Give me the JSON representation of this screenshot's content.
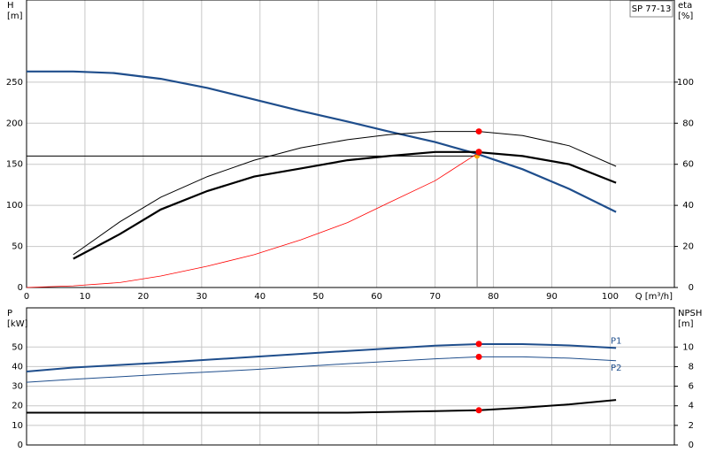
{
  "chart_data": [
    {
      "type": "line",
      "title": "SP 77-13",
      "ylabel": "H",
      "yunit": "[m]",
      "y2label": "eta",
      "y2unit": "[%]",
      "xlabel": "Q [m³/h]",
      "xlim": [
        0,
        111
      ],
      "xticks": [
        0,
        10,
        20,
        30,
        40,
        50,
        60,
        70,
        80,
        90,
        100
      ],
      "ylim": [
        0,
        350
      ],
      "yticks": [
        0,
        50,
        100,
        150,
        200,
        250
      ],
      "y2lim": [
        0,
        140
      ],
      "y2ticks": [
        0,
        20,
        40,
        60,
        80,
        100
      ],
      "grid": true,
      "series": [
        {
          "color": "#1f4e8c",
          "width": 2.2,
          "x": [
            0,
            8,
            15,
            23,
            31,
            39,
            47,
            55,
            62,
            70,
            77,
            85,
            93,
            101
          ],
          "values": [
            263,
            263,
            261,
            254,
            243,
            229,
            215,
            202,
            190,
            177,
            163,
            144,
            120,
            92
          ]
        },
        {
          "color": "#000000",
          "width": 1,
          "axis": "y2",
          "x": [
            8,
            16,
            23,
            31,
            39,
            47,
            55,
            62,
            70,
            77.5,
            85,
            93,
            101
          ],
          "values": [
            16,
            32,
            44,
            54,
            62,
            68,
            72,
            74.4,
            76,
            76,
            74,
            69,
            59
          ]
        },
        {
          "color": "#000000",
          "width": 2.2,
          "axis": "y2",
          "x": [
            8,
            16,
            23,
            31,
            39,
            47,
            55,
            62,
            70,
            77,
            85,
            93,
            101
          ],
          "values": [
            14,
            26,
            38,
            47,
            54,
            58,
            62,
            64,
            66,
            66,
            64,
            60,
            51
          ]
        },
        {
          "color": "#ff0000",
          "width": 0.8,
          "x": [
            0,
            8,
            16,
            23,
            31,
            39,
            47,
            55,
            62,
            70,
            77
          ],
          "values": [
            0,
            2,
            6,
            14,
            26,
            40,
            58,
            79,
            103,
            130,
            162
          ]
        },
        {
          "type": "points",
          "color": "#ff0000",
          "x": [
            77.5,
            77.5,
            77.5
          ],
          "values": [
            190,
            165,
            165
          ]
        }
      ],
      "operating_point": {
        "x": 77.2,
        "y": 160,
        "color": "#ffa500"
      }
    },
    {
      "type": "line",
      "ylabel": "P",
      "yunit": "[kW]",
      "y2label": "NPSH",
      "y2unit": "[m]",
      "xlim": [
        0,
        111
      ],
      "xticks": [
        0,
        10,
        20,
        30,
        40,
        50,
        60,
        70,
        80,
        90,
        100
      ],
      "ylim": [
        0,
        70
      ],
      "yticks": [
        0,
        10,
        20,
        30,
        40,
        50
      ],
      "y2lim": [
        0,
        14
      ],
      "y2ticks": [
        0,
        2,
        4,
        6,
        8,
        10
      ],
      "grid": true,
      "series": [
        {
          "name": "P1",
          "color": "#1f4e8c",
          "width": 2,
          "x": [
            0,
            8,
            23,
            39,
            55,
            70,
            77.5,
            85,
            93,
            101
          ],
          "values": [
            37.5,
            39.5,
            42,
            45,
            48,
            50.7,
            51.5,
            51.5,
            50.8,
            49.5
          ]
        },
        {
          "name": "P2",
          "color": "#1f4e8c",
          "width": 1,
          "x": [
            0,
            8,
            23,
            39,
            55,
            70,
            77.5,
            85,
            93,
            101
          ],
          "values": [
            32,
            33.5,
            36,
            38.5,
            41.5,
            44,
            45,
            45,
            44.3,
            43
          ]
        },
        {
          "color": "#000000",
          "width": 2,
          "axis": "y2",
          "x": [
            0,
            8,
            55,
            70,
            77.5,
            85,
            93,
            101
          ],
          "values": [
            3.3,
            3.3,
            3.3,
            3.45,
            3.55,
            3.8,
            4.15,
            4.6
          ]
        },
        {
          "type": "points",
          "color": "#ff0000",
          "x": [
            77.5,
            77.5,
            77.5
          ],
          "values": [
            51.6,
            45,
            17.7
          ]
        }
      ]
    }
  ]
}
